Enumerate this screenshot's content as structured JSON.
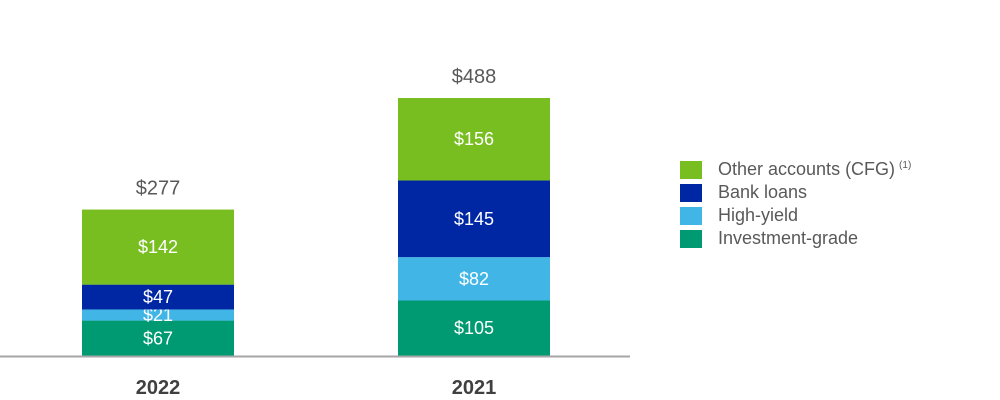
{
  "chart_data": {
    "type": "bar",
    "stacked": true,
    "categories": [
      "2022",
      "2021"
    ],
    "series": [
      {
        "name": "Investment-grade",
        "values": [
          67,
          105
        ],
        "labels": [
          "$67",
          "$105"
        ],
        "color": "#009A72"
      },
      {
        "name": "High-yield",
        "values": [
          21,
          82
        ],
        "labels": [
          "$21",
          "$82"
        ],
        "color": "#41B6E6"
      },
      {
        "name": "Bank loans",
        "values": [
          47,
          145
        ],
        "labels": [
          "$47",
          "$145"
        ],
        "color": "#0027A3"
      },
      {
        "name": "Other accounts (CFG)",
        "values": [
          142,
          156
        ],
        "labels": [
          "$142",
          "$156"
        ],
        "color": "#78BE20"
      }
    ],
    "totals": [
      277,
      488
    ],
    "total_labels": [
      "$277",
      "$488"
    ],
    "ylim": [
      0,
      488
    ],
    "grid": false,
    "legend_position": "right",
    "legend_order": [
      "Other accounts (CFG)",
      "Bank loans",
      "High-yield",
      "Investment-grade"
    ]
  },
  "legend": {
    "items": [
      {
        "label": "Other accounts (CFG)",
        "sup": "(1)",
        "color": "#78BE20"
      },
      {
        "label": "Bank loans",
        "sup": "",
        "color": "#0027A3"
      },
      {
        "label": "High-yield",
        "sup": "",
        "color": "#41B6E6"
      },
      {
        "label": "Investment-grade",
        "sup": "",
        "color": "#009A72"
      }
    ]
  }
}
